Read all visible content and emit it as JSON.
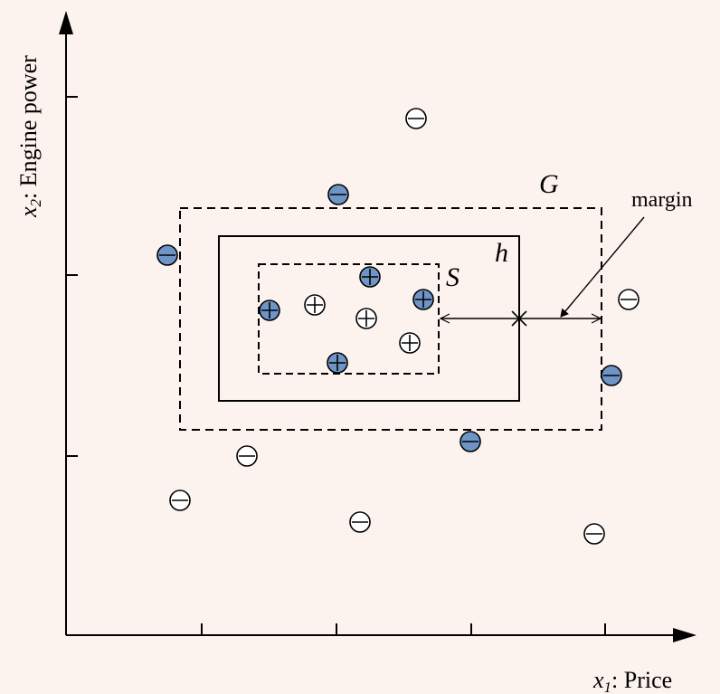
{
  "axes": {
    "x_label_var": "x",
    "x_label_sub": "1",
    "x_label_text": ": Price",
    "y_label_var": "x",
    "y_label_sub": "2",
    "y_label_text": ": Engine power"
  },
  "labels": {
    "outer_hypothesis": "G",
    "hypothesis": "h",
    "inner_hypothesis": "S",
    "margin": "margin"
  },
  "colors": {
    "background": "#fdf3ee",
    "filled_point": "#6f94c6",
    "hollow_point": "#ffffff",
    "stroke": "#000000"
  },
  "legend_semantics": {
    "plus_symbol": "positive example",
    "minus_symbol": "negative example"
  }
}
